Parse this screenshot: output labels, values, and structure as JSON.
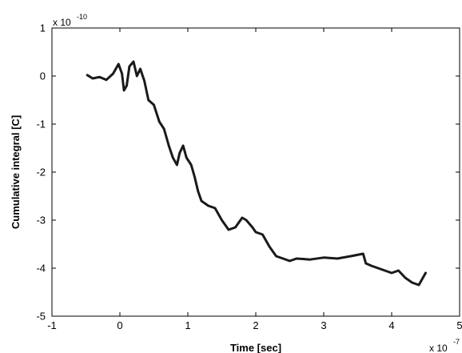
{
  "chart_data": {
    "type": "line",
    "xlabel": "Time [sec]",
    "ylabel": "Cumulative integral [C]",
    "x_multiplier": {
      "base": "x 10",
      "exponent": "-7"
    },
    "y_multiplier": {
      "base": "x 10",
      "exponent": "-10"
    },
    "xlim": [
      -1,
      5
    ],
    "ylim": [
      -5,
      1
    ],
    "xticks": [
      -1,
      0,
      1,
      2,
      3,
      4,
      5
    ],
    "yticks": [
      -5,
      -4,
      -3,
      -2,
      -1,
      0,
      1
    ],
    "xtick_labels": [
      "-1",
      "0",
      "1",
      "2",
      "3",
      "4",
      "5"
    ],
    "ytick_labels": [
      "-5",
      "-4",
      "-3",
      "-2",
      "-1",
      "0",
      "1"
    ],
    "grid": false,
    "line_color": "#1a1a1a",
    "series": [
      {
        "x": [
          -0.48,
          -0.4,
          -0.3,
          -0.2,
          -0.1,
          -0.02,
          0.03,
          0.06,
          0.1,
          0.14,
          0.2,
          0.25,
          0.3,
          0.36,
          0.42,
          0.5,
          0.58,
          0.65,
          0.72,
          0.78,
          0.84,
          0.88,
          0.93,
          0.98,
          1.05,
          1.1,
          1.15,
          1.2,
          1.3,
          1.4,
          1.5,
          1.6,
          1.7,
          1.8,
          1.86,
          1.95,
          2.0,
          2.1,
          2.2,
          2.3,
          2.4,
          2.5,
          2.6,
          2.8,
          3.0,
          3.2,
          3.4,
          3.58,
          3.62,
          3.7,
          3.8,
          3.9,
          4.0,
          4.1,
          4.2,
          4.3,
          4.4,
          4.5
        ],
        "y": [
          0.02,
          -0.05,
          -0.02,
          -0.08,
          0.05,
          0.25,
          0.05,
          -0.3,
          -0.2,
          0.2,
          0.3,
          0.0,
          0.15,
          -0.1,
          -0.5,
          -0.6,
          -0.95,
          -1.1,
          -1.45,
          -1.7,
          -1.85,
          -1.6,
          -1.45,
          -1.7,
          -1.85,
          -2.1,
          -2.4,
          -2.6,
          -2.7,
          -2.75,
          -3.0,
          -3.2,
          -3.15,
          -2.95,
          -3.0,
          -3.15,
          -3.25,
          -3.3,
          -3.55,
          -3.75,
          -3.8,
          -3.85,
          -3.8,
          -3.82,
          -3.78,
          -3.8,
          -3.75,
          -3.7,
          -3.9,
          -3.95,
          -4.0,
          -4.05,
          -4.1,
          -4.05,
          -4.2,
          -4.3,
          -4.35,
          -4.1
        ]
      }
    ]
  }
}
